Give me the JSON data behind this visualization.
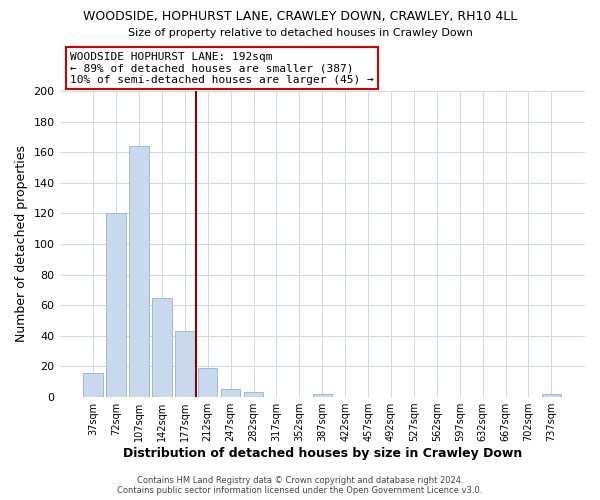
{
  "title": "WOODSIDE, HOPHURST LANE, CRAWLEY DOWN, CRAWLEY, RH10 4LL",
  "subtitle": "Size of property relative to detached houses in Crawley Down",
  "xlabel": "Distribution of detached houses by size in Crawley Down",
  "ylabel": "Number of detached properties",
  "bin_labels": [
    "37sqm",
    "72sqm",
    "107sqm",
    "142sqm",
    "177sqm",
    "212sqm",
    "247sqm",
    "282sqm",
    "317sqm",
    "352sqm",
    "387sqm",
    "422sqm",
    "457sqm",
    "492sqm",
    "527sqm",
    "562sqm",
    "597sqm",
    "632sqm",
    "667sqm",
    "702sqm",
    "737sqm"
  ],
  "bar_values": [
    16,
    120,
    164,
    65,
    43,
    19,
    5,
    3,
    0,
    0,
    2,
    0,
    0,
    0,
    0,
    0,
    0,
    0,
    0,
    0,
    2
  ],
  "bar_color": "#c8d9ed",
  "bar_edge_color": "#a0b8d8",
  "highlight_line_color": "#8b0000",
  "annotation_title": "WOODSIDE HOPHURST LANE: 192sqm",
  "annotation_line1": "← 89% of detached houses are smaller (387)",
  "annotation_line2": "10% of semi-detached houses are larger (45) →",
  "annotation_box_color": "#ffffff",
  "annotation_box_edge_color": "#cc0000",
  "ylim": [
    0,
    200
  ],
  "yticks": [
    0,
    20,
    40,
    60,
    80,
    100,
    120,
    140,
    160,
    180,
    200
  ],
  "footer_line1": "Contains HM Land Registry data © Crown copyright and database right 2024.",
  "footer_line2": "Contains public sector information licensed under the Open Government Licence v3.0.",
  "background_color": "#ffffff",
  "grid_color": "#d0d8e8"
}
